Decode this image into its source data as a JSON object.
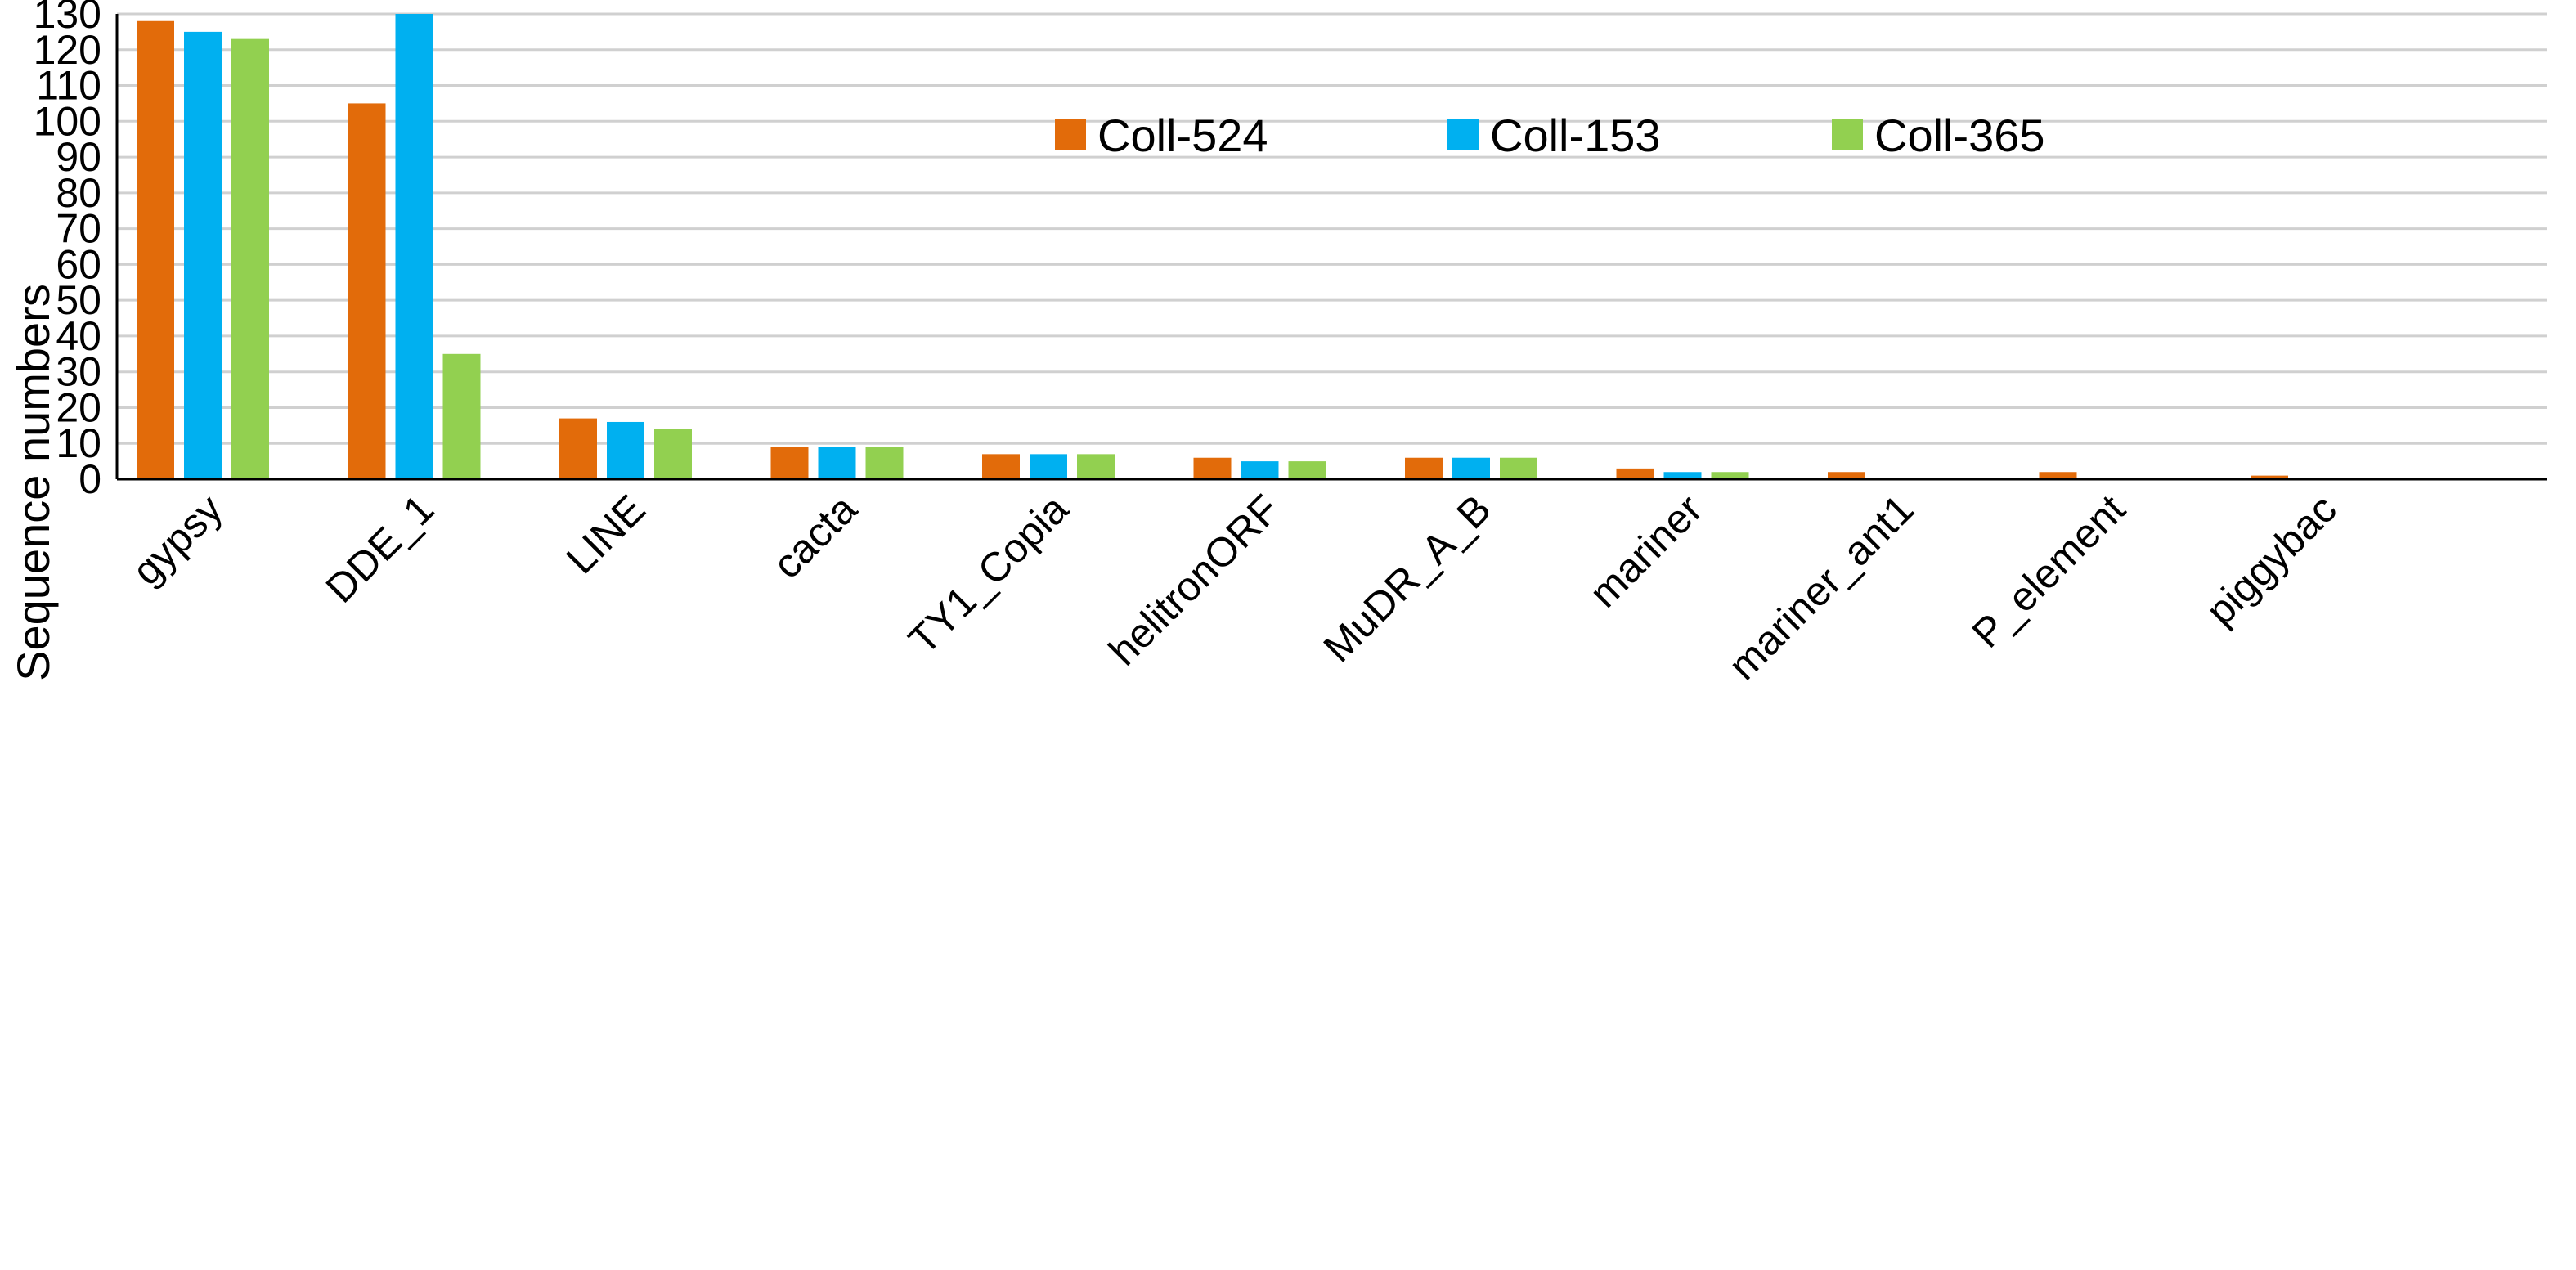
{
  "chart_data": {
    "type": "bar",
    "title": "",
    "xlabel": "",
    "ylabel": "Sequence numbers",
    "ylim": [
      0,
      130
    ],
    "yticks": [
      0,
      10,
      20,
      30,
      40,
      50,
      60,
      70,
      80,
      90,
      100,
      110,
      120,
      130
    ],
    "grid": true,
    "legend_position": "top-center",
    "categories": [
      "gypsy",
      "DDE_1",
      "LINE",
      "cacta",
      "TY1_Copia",
      "helitronORF",
      "MuDR_A_B",
      "mariner",
      "mariner_ant1",
      "P_element",
      "piggybac"
    ],
    "series": [
      {
        "name": "Coll-524",
        "color": "#E26B0A",
        "values": [
          128,
          105,
          17,
          9,
          7,
          6,
          6,
          3,
          2,
          2,
          1
        ]
      },
      {
        "name": "Coll-153",
        "color": "#00B0F0",
        "values": [
          125,
          130,
          16,
          9,
          7,
          5,
          6,
          2,
          0,
          0,
          0
        ]
      },
      {
        "name": "Coll-365",
        "color": "#92D050",
        "values": [
          123,
          35,
          14,
          9,
          7,
          5,
          6,
          2,
          0,
          0,
          0
        ]
      }
    ]
  }
}
